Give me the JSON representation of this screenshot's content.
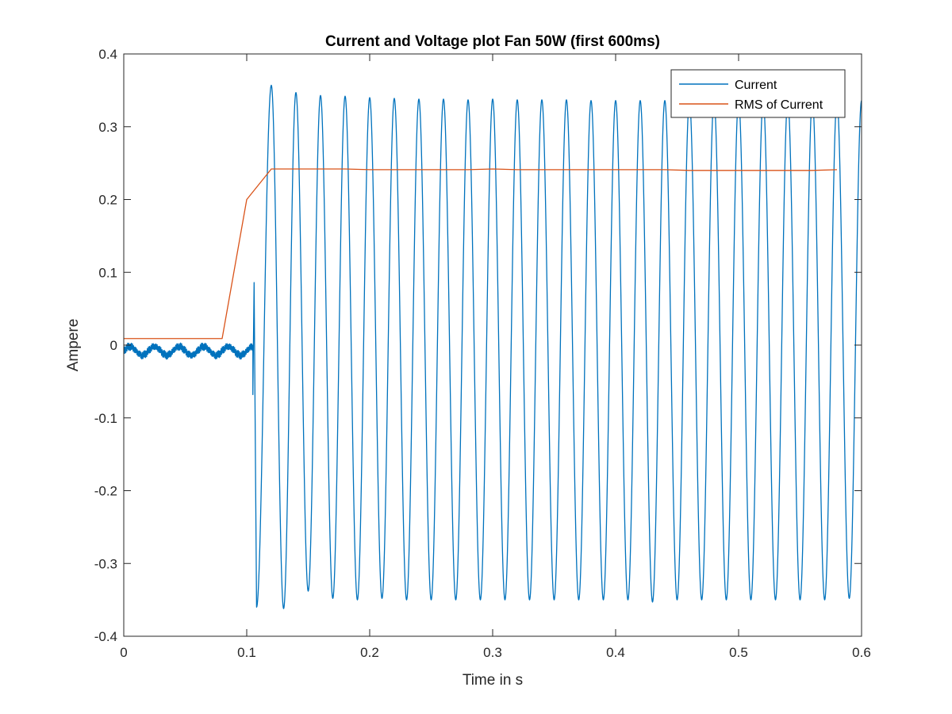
{
  "chart_data": {
    "type": "line",
    "title": "Current and Voltage plot Fan 50W (first 600ms)",
    "xlabel": "Time in s",
    "ylabel": "Ampere",
    "xlim": [
      0,
      0.6
    ],
    "ylim": [
      -0.4,
      0.4
    ],
    "xticks": [
      0,
      0.1,
      0.2,
      0.3,
      0.4,
      0.5,
      0.6
    ],
    "xtick_labels": [
      "0",
      "0.1",
      "0.2",
      "0.3",
      "0.4",
      "0.5",
      "0.6"
    ],
    "yticks": [
      -0.4,
      -0.3,
      -0.2,
      -0.1,
      0,
      0.1,
      0.2,
      0.3,
      0.4
    ],
    "ytick_labels": [
      "-0.4",
      "-0.3",
      "-0.2",
      "-0.1",
      "0",
      "0.1",
      "0.2",
      "0.3",
      "0.4"
    ],
    "grid": false,
    "legend_position": "top-right",
    "series": [
      {
        "name": "Current",
        "color": "#0072BD",
        "signal": {
          "frequency_hz": 50,
          "switch_on_time_s": 0.105,
          "before_switch": {
            "offset": -0.008,
            "ripple_amplitude": 0.006
          },
          "inrush_points": [
            [
              0.105,
              -0.068
            ],
            [
              0.106,
              0.086
            ],
            [
              0.108,
              -0.36
            ]
          ],
          "peaks": [
            [
              0.12,
              0.357
            ],
            [
              0.13,
              -0.362
            ],
            [
              0.14,
              0.347
            ],
            [
              0.15,
              -0.338
            ],
            [
              0.16,
              0.343
            ],
            [
              0.17,
              -0.348
            ],
            [
              0.18,
              0.342
            ],
            [
              0.19,
              -0.35
            ],
            [
              0.2,
              0.34
            ],
            [
              0.21,
              -0.348
            ],
            [
              0.22,
              0.339
            ],
            [
              0.23,
              -0.35
            ],
            [
              0.24,
              0.338
            ],
            [
              0.25,
              -0.35
            ],
            [
              0.26,
              0.338
            ],
            [
              0.27,
              -0.35
            ],
            [
              0.28,
              0.337
            ],
            [
              0.29,
              -0.35
            ],
            [
              0.3,
              0.338
            ],
            [
              0.31,
              -0.35
            ],
            [
              0.32,
              0.337
            ],
            [
              0.33,
              -0.35
            ],
            [
              0.34,
              0.337
            ],
            [
              0.35,
              -0.35
            ],
            [
              0.36,
              0.337
            ],
            [
              0.37,
              -0.35
            ],
            [
              0.38,
              0.336
            ],
            [
              0.39,
              -0.35
            ],
            [
              0.4,
              0.336
            ],
            [
              0.41,
              -0.35
            ],
            [
              0.42,
              0.336
            ],
            [
              0.43,
              -0.353
            ],
            [
              0.44,
              0.336
            ],
            [
              0.45,
              -0.35
            ],
            [
              0.46,
              0.336
            ],
            [
              0.47,
              -0.35
            ],
            [
              0.48,
              0.336
            ],
            [
              0.49,
              -0.35
            ],
            [
              0.5,
              0.336
            ],
            [
              0.51,
              -0.35
            ],
            [
              0.52,
              0.336
            ],
            [
              0.53,
              -0.35
            ],
            [
              0.54,
              0.336
            ],
            [
              0.55,
              -0.35
            ],
            [
              0.56,
              0.336
            ],
            [
              0.57,
              -0.35
            ],
            [
              0.58,
              0.336
            ],
            [
              0.59,
              -0.348
            ],
            [
              0.6,
              0.336
            ]
          ]
        }
      },
      {
        "name": "RMS of Current",
        "color": "#D95319",
        "x": [
          0,
          0.02,
          0.04,
          0.06,
          0.08,
          0.1,
          0.12,
          0.14,
          0.16,
          0.18,
          0.2,
          0.22,
          0.24,
          0.26,
          0.28,
          0.3,
          0.32,
          0.34,
          0.36,
          0.38,
          0.4,
          0.42,
          0.44,
          0.46,
          0.48,
          0.5,
          0.52,
          0.54,
          0.56,
          0.58
        ],
        "y": [
          0.009,
          0.009,
          0.009,
          0.009,
          0.009,
          0.2,
          0.242,
          0.242,
          0.242,
          0.242,
          0.241,
          0.241,
          0.241,
          0.241,
          0.241,
          0.242,
          0.241,
          0.241,
          0.241,
          0.241,
          0.241,
          0.241,
          0.241,
          0.24,
          0.24,
          0.24,
          0.24,
          0.24,
          0.24,
          0.241
        ]
      }
    ]
  }
}
